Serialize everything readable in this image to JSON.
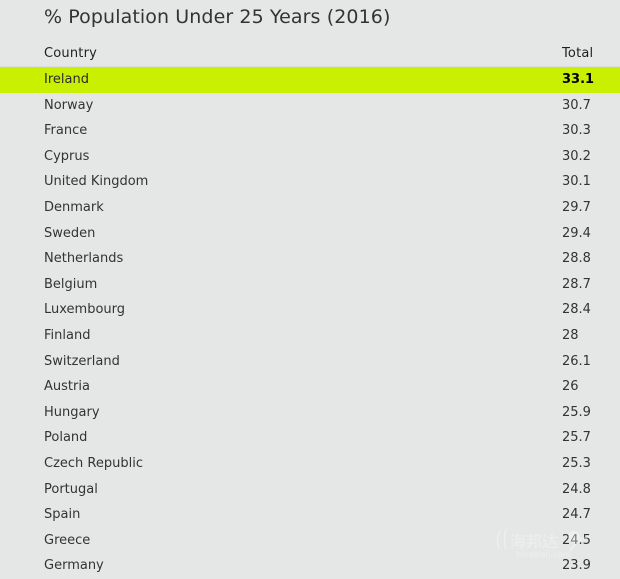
{
  "title": "% Population Under 25 Years (2016)",
  "colors": {
    "background": "#e5e7e6",
    "highlight": "#c8f000",
    "text": "#333333"
  },
  "chart_data": {
    "type": "table",
    "title": "% Population Under 25 Years (2016)",
    "columns": [
      "Country",
      "Total"
    ],
    "highlighted_row": 0,
    "rows": [
      {
        "country": "Ireland",
        "total": 33.1
      },
      {
        "country": "Norway",
        "total": 30.7
      },
      {
        "country": "France",
        "total": 30.3
      },
      {
        "country": "Cyprus",
        "total": 30.2
      },
      {
        "country": "United Kingdom",
        "total": 30.1
      },
      {
        "country": "Denmark",
        "total": 29.7
      },
      {
        "country": "Sweden",
        "total": 29.4
      },
      {
        "country": "Netherlands",
        "total": 28.8
      },
      {
        "country": "Belgium",
        "total": 28.7
      },
      {
        "country": "Luxembourg",
        "total": 28.4
      },
      {
        "country": "Finland",
        "total": 28
      },
      {
        "country": "Switzerland",
        "total": 26.1
      },
      {
        "country": "Austria",
        "total": 26
      },
      {
        "country": "Hungary",
        "total": 25.9
      },
      {
        "country": "Poland",
        "total": 25.7
      },
      {
        "country": "Czech Republic",
        "total": 25.3
      },
      {
        "country": "Portugal",
        "total": 24.8
      },
      {
        "country": "Spain",
        "total": 24.7
      },
      {
        "country": "Greece",
        "total": 24.5
      },
      {
        "country": "Germany",
        "total": 23.9
      }
    ]
  },
  "watermark": {
    "text": "海邦达",
    "subtext": "hinabian.com"
  }
}
